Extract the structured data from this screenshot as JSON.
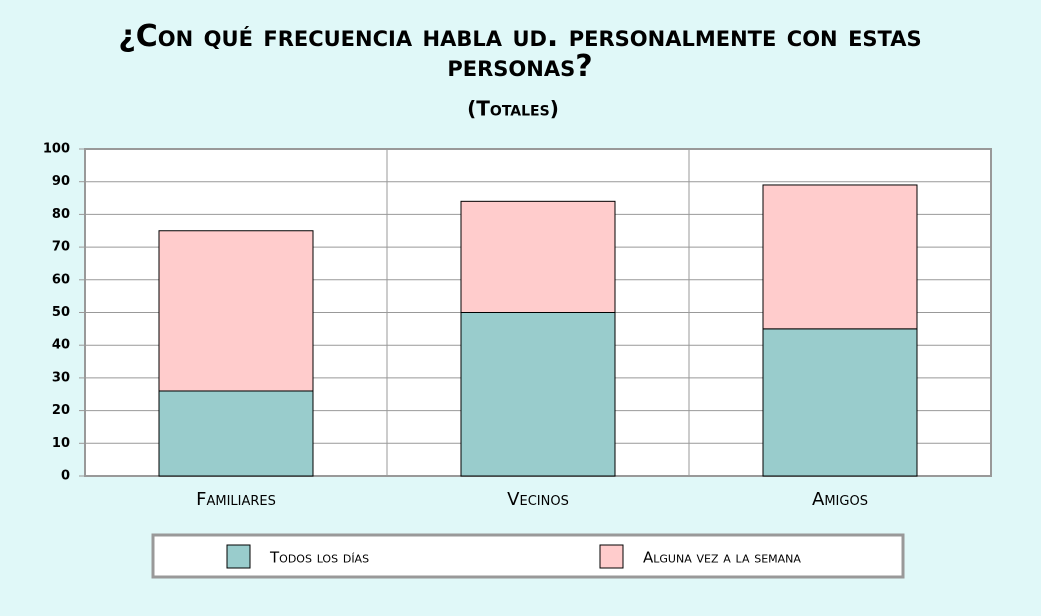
{
  "chart_data": {
    "type": "stacked_bar",
    "title": "¿Con qué frecuencia habla ud. personalmente con estas personas?",
    "subtitle": "(Totales)",
    "categories": [
      "Familiares",
      "Vecinos",
      "Amigos"
    ],
    "series": [
      {
        "name": "Todos los días",
        "color": "#99cccc",
        "values": [
          26,
          50,
          45
        ]
      },
      {
        "name": "Alguna vez a la semana",
        "color": "#ffcccc",
        "values": [
          49,
          34,
          44
        ]
      }
    ],
    "ylim": [
      0,
      100
    ],
    "yticks": [
      0,
      10,
      20,
      30,
      40,
      50,
      60,
      70,
      80,
      90,
      100
    ],
    "grid": true,
    "legend": "bottom"
  }
}
